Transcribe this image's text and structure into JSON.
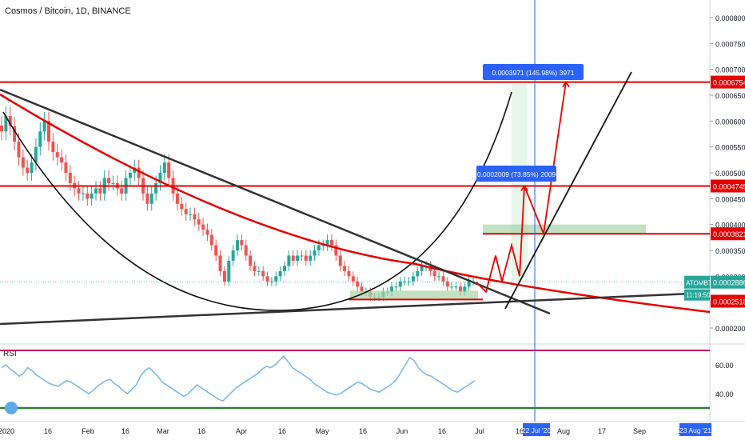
{
  "header": {
    "title": "Cosmos / Bitcoin, 1D, BINANCE"
  },
  "rsi_panel": {
    "label": "RSI"
  },
  "colors": {
    "red": "#e60000",
    "dark_line": "#333333",
    "blue_line": "#2962ff",
    "green_fill": "#a5d6a7",
    "candle_up": "#26a69a",
    "candle_down": "#ef5350",
    "rsi_line": "#7cb9e8",
    "rsi_upper": "#c2185b",
    "rsi_lower": "#2e7d32",
    "axis_tag_blue": "#2962ff"
  },
  "chart_data": {
    "type": "candlestick",
    "price_axis_labels": [
      "0.0008000",
      "0.0007500",
      "0.0007000",
      "0.0006500",
      "0.0006000",
      "0.0005500",
      "0.0005000",
      "0.0004500",
      "0.0004000",
      "0.0003500",
      "0.0003000",
      "0.0002500",
      "0.0002000"
    ],
    "price_axis_values": [
      0.0008,
      0.00075,
      0.0007,
      0.00065,
      0.0006,
      0.00055,
      0.0005,
      0.00045,
      0.0004,
      0.00035,
      0.0003,
      0.00025,
      0.0002
    ],
    "rsi_axis_labels": [
      "60.00",
      "40.00"
    ],
    "rsi_axis_values": [
      60,
      40
    ],
    "x_axis_labels": [
      "2020",
      "16",
      "Feb",
      "16",
      "Mar",
      "16",
      "Apr",
      "16",
      "May",
      "16",
      "Jun",
      "16",
      "Jul",
      "16",
      "Aug",
      "17",
      "Sep",
      "16"
    ],
    "horizontal_levels": [
      {
        "value": 0.0006754,
        "label": "0.0006754"
      },
      {
        "value": 0.0004745,
        "label": "0.0004745"
      },
      {
        "value": 0.0003821,
        "label": "0.0003821"
      },
      {
        "value": 0.0002518,
        "label": "0.0002518"
      }
    ],
    "current_price": {
      "symbol": "ATOMBTC",
      "value": "0.0002886",
      "countdown": "11:19:50"
    },
    "measure_labels": [
      {
        "text": "0.0003971 (145.98%) 3971"
      },
      {
        "text": "0.0002009 (73.85%) 2009"
      }
    ],
    "date_tags": [
      {
        "text": "22 Jul '20"
      },
      {
        "text": "23 Aug '21"
      }
    ],
    "prices_close": [
      0.00058,
      0.00061,
      0.00059,
      0.00056,
      0.00053,
      0.00051,
      0.0005,
      0.00052,
      0.00055,
      0.00058,
      0.0006,
      0.00056,
      0.00054,
      0.00053,
      0.00052,
      0.0005,
      0.00048,
      0.00047,
      0.00046,
      0.00046,
      0.00045,
      0.00046,
      0.00047,
      0.00046,
      0.00049,
      0.00048,
      0.00048,
      0.00047,
      0.00046,
      0.00049,
      0.0005,
      0.00051,
      0.00049,
      0.00046,
      0.00044,
      0.00046,
      0.00048,
      0.0005,
      0.00052,
      0.00049,
      0.00046,
      0.00044,
      0.00043,
      0.00042,
      0.00042,
      0.00041,
      0.0004,
      0.00039,
      0.00038,
      0.00036,
      0.00034,
      0.00031,
      0.00029,
      0.00033,
      0.00035,
      0.00037,
      0.00036,
      0.00034,
      0.00032,
      0.00031,
      0.00031,
      0.0003,
      0.00029,
      0.00029,
      0.0003,
      0.00031,
      0.00032,
      0.00034,
      0.00033,
      0.00034,
      0.00034,
      0.00033,
      0.00034,
      0.00035,
      0.00036,
      0.00036,
      0.00037,
      0.00036,
      0.00034,
      0.00032,
      0.00031,
      0.0003,
      0.00029,
      0.00028,
      0.00027,
      0.00027,
      0.00026,
      0.00026,
      0.00026,
      0.00027,
      0.00027,
      0.00028,
      0.00028,
      0.00029,
      0.00029,
      0.00029,
      0.0003,
      0.00031,
      0.00032,
      0.00032,
      0.00031,
      0.0003,
      0.0003,
      0.00029,
      0.00028,
      0.00028,
      0.00028,
      0.00027,
      0.00028,
      0.00029,
      0.00029
    ],
    "rsi_values": [
      58,
      60,
      57,
      55,
      52,
      54,
      58,
      56,
      53,
      51,
      49,
      47,
      46,
      45,
      47,
      49,
      48,
      46,
      44,
      42,
      40,
      42,
      45,
      47,
      49,
      50,
      47,
      45,
      42,
      40,
      43,
      46,
      52,
      56,
      58,
      55,
      52,
      48,
      46,
      44,
      42,
      40,
      38,
      40,
      43,
      46,
      44,
      42,
      40,
      38,
      36,
      35,
      38,
      41,
      44,
      46,
      48,
      50,
      52,
      54,
      57,
      59,
      58,
      60,
      63,
      66,
      62,
      58,
      56,
      54,
      52,
      50,
      47,
      45,
      43,
      41,
      40,
      39,
      40,
      42,
      44,
      46,
      48,
      47,
      45,
      43,
      42,
      41,
      43,
      45,
      47,
      50,
      55,
      60,
      65,
      63,
      58,
      55,
      53,
      52,
      50,
      48,
      46,
      44,
      42,
      41,
      43,
      45,
      47,
      49
    ],
    "red_zigzag_projection": [
      0.0002886,
      0.00027,
      0.00034,
      0.00029,
      0.00036,
      0.0003,
      0.0004745,
      0.0003821,
      0.0006754
    ],
    "rsi_upper": 70,
    "rsi_lower": 30
  }
}
